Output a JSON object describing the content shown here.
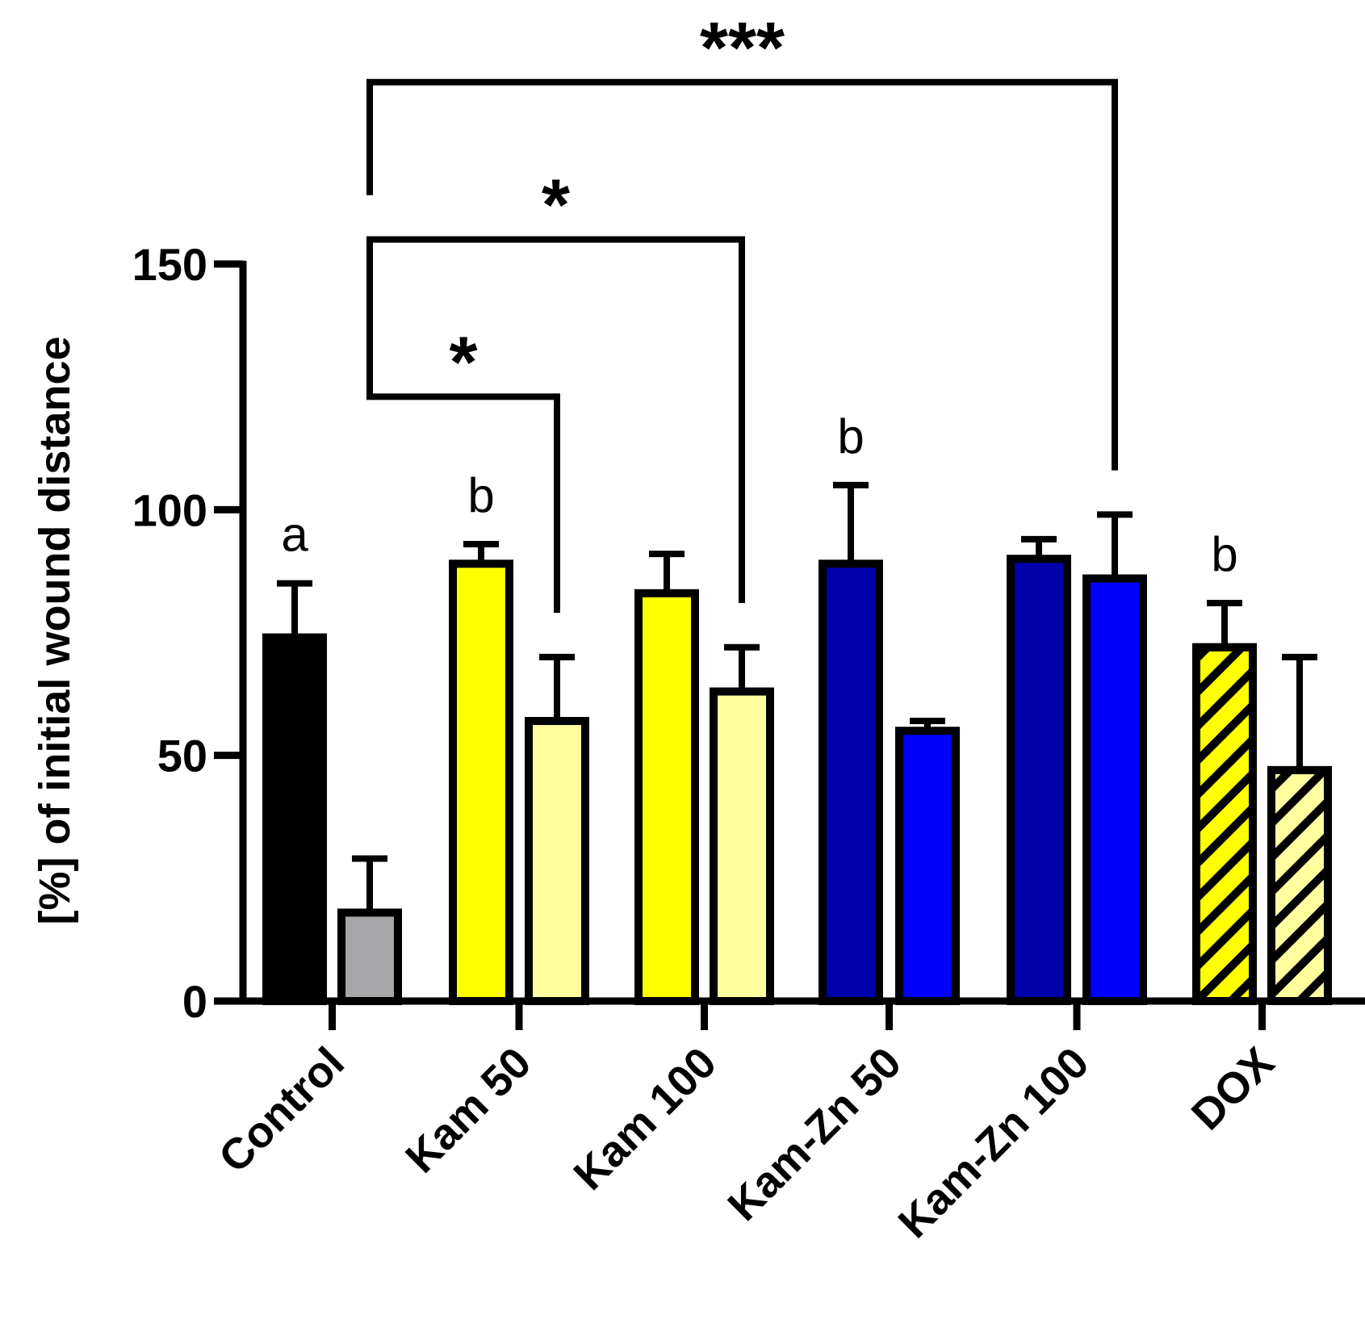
{
  "chart_data": {
    "type": "bar",
    "title": "",
    "xlabel": "",
    "ylabel": "[%] of initial wound distance",
    "ylim": [
      0,
      150
    ],
    "yticks": [
      0,
      50,
      100,
      150
    ],
    "categories": [
      "Control",
      "Kam 50",
      "Kam 100",
      "Kam-Zn 50",
      "Kam-Zn 100",
      "DOX"
    ],
    "bars": [
      {
        "group": "Control",
        "value": 74,
        "error": 11,
        "fill": "#000000",
        "hatch": false
      },
      {
        "group": "Control",
        "value": 18,
        "error": 11,
        "fill": "#a6a6a8",
        "hatch": false
      },
      {
        "group": "Kam 50",
        "value": 89,
        "error": 4,
        "fill": "#ffff00",
        "hatch": false
      },
      {
        "group": "Kam 50",
        "value": 57,
        "error": 13,
        "fill": "#ffffa0",
        "hatch": false
      },
      {
        "group": "Kam 100",
        "value": 83,
        "error": 8,
        "fill": "#ffff00",
        "hatch": false
      },
      {
        "group": "Kam 100",
        "value": 63,
        "error": 9,
        "fill": "#ffffa0",
        "hatch": false
      },
      {
        "group": "Kam-Zn 50",
        "value": 89,
        "error": 16,
        "fill": "#0000aa",
        "hatch": false
      },
      {
        "group": "Kam-Zn 50",
        "value": 55,
        "error": 2,
        "fill": "#0000ff",
        "hatch": false
      },
      {
        "group": "Kam-Zn 100",
        "value": 90,
        "error": 4,
        "fill": "#0000aa",
        "hatch": false
      },
      {
        "group": "Kam-Zn 100",
        "value": 86,
        "error": 13,
        "fill": "#0000ff",
        "hatch": false
      },
      {
        "group": "DOX",
        "value": 72,
        "error": 9,
        "fill": "#ffff00",
        "hatch": true
      },
      {
        "group": "DOX",
        "value": 47,
        "error": 23,
        "fill": "#ffffa0",
        "hatch": true
      }
    ],
    "letters": [
      {
        "bar": 0,
        "text": "a"
      },
      {
        "bar": 2,
        "text": "b"
      },
      {
        "bar": 6,
        "text": "b"
      },
      {
        "bar": 10,
        "text": "b"
      }
    ],
    "brackets": [
      {
        "from_bar": 1,
        "to_bar": 3,
        "label": "*",
        "level": 123,
        "left_end": 135,
        "right_end": 79
      },
      {
        "from_bar": 1,
        "to_bar": 5,
        "label": "*",
        "level": 155,
        "left_end": 132,
        "right_end": 81
      },
      {
        "from_bar": 1,
        "to_bar": 9,
        "label": "***",
        "level": 187,
        "left_end": 164,
        "right_end": 108
      }
    ]
  }
}
